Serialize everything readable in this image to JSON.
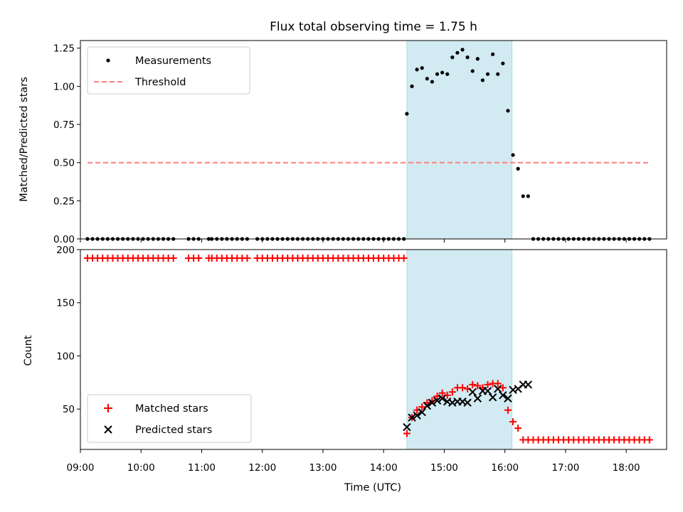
{
  "colors": {
    "measurements": "#000000",
    "threshold": "#ff7f7f",
    "matched": "#ff0000",
    "predicted": "#000000",
    "span": "#add8e6"
  },
  "chart_data": [
    {
      "type": "scatter",
      "title": "Flux total observing time = 1.75 h",
      "xlabel": "",
      "ylabel": "Matched/Predicted stars",
      "xlim": [
        "09:00",
        "18:40"
      ],
      "ylim": [
        0,
        1.3
      ],
      "yticks": [
        "0.00",
        "0.25",
        "0.50",
        "0.75",
        "1.00",
        "1.25"
      ],
      "highlight_span": [
        "14:23",
        "16:07"
      ],
      "legend_position": "top-left",
      "series": [
        {
          "name": "Measurements",
          "marker": "dot",
          "points": [
            [
              "09:07",
              0
            ],
            [
              "09:12",
              0
            ],
            [
              "09:17",
              0
            ],
            [
              "09:22",
              0
            ],
            [
              "09:27",
              0
            ],
            [
              "09:32",
              0
            ],
            [
              "09:37",
              0
            ],
            [
              "09:42",
              0
            ],
            [
              "09:47",
              0
            ],
            [
              "09:52",
              0
            ],
            [
              "09:57",
              0
            ],
            [
              "10:02",
              0
            ],
            [
              "10:07",
              0
            ],
            [
              "10:12",
              0
            ],
            [
              "10:17",
              0
            ],
            [
              "10:22",
              0
            ],
            [
              "10:27",
              0
            ],
            [
              "10:32",
              0
            ],
            [
              "10:47",
              0
            ],
            [
              "10:52",
              0
            ],
            [
              "10:57",
              0
            ],
            [
              "11:07",
              0
            ],
            [
              "11:10",
              0
            ],
            [
              "11:15",
              0
            ],
            [
              "11:20",
              0
            ],
            [
              "11:25",
              0
            ],
            [
              "11:30",
              0
            ],
            [
              "11:35",
              0
            ],
            [
              "11:40",
              0
            ],
            [
              "11:45",
              0
            ],
            [
              "11:55",
              0
            ],
            [
              "12:00",
              0
            ],
            [
              "12:05",
              0
            ],
            [
              "12:10",
              0
            ],
            [
              "12:15",
              0
            ],
            [
              "12:20",
              0
            ],
            [
              "12:25",
              0
            ],
            [
              "12:30",
              0
            ],
            [
              "12:35",
              0
            ],
            [
              "12:40",
              0
            ],
            [
              "12:45",
              0
            ],
            [
              "12:50",
              0
            ],
            [
              "12:55",
              0
            ],
            [
              "13:00",
              0
            ],
            [
              "13:05",
              0
            ],
            [
              "13:10",
              0
            ],
            [
              "13:15",
              0
            ],
            [
              "13:20",
              0
            ],
            [
              "13:25",
              0
            ],
            [
              "13:30",
              0
            ],
            [
              "13:35",
              0
            ],
            [
              "13:40",
              0
            ],
            [
              "13:45",
              0
            ],
            [
              "13:50",
              0
            ],
            [
              "13:55",
              0
            ],
            [
              "14:00",
              0
            ],
            [
              "14:05",
              0
            ],
            [
              "14:10",
              0
            ],
            [
              "14:15",
              0
            ],
            [
              "14:20",
              0
            ],
            [
              "14:23",
              0.82
            ],
            [
              "14:28",
              1.0
            ],
            [
              "14:33",
              1.11
            ],
            [
              "14:38",
              1.12
            ],
            [
              "14:43",
              1.05
            ],
            [
              "14:48",
              1.03
            ],
            [
              "14:53",
              1.08
            ],
            [
              "14:58",
              1.09
            ],
            [
              "15:03",
              1.08
            ],
            [
              "15:08",
              1.19
            ],
            [
              "15:13",
              1.22
            ],
            [
              "15:18",
              1.24
            ],
            [
              "15:23",
              1.19
            ],
            [
              "15:28",
              1.1
            ],
            [
              "15:33",
              1.18
            ],
            [
              "15:38",
              1.04
            ],
            [
              "15:43",
              1.08
            ],
            [
              "15:48",
              1.21
            ],
            [
              "15:53",
              1.08
            ],
            [
              "15:58",
              1.15
            ],
            [
              "16:03",
              0.84
            ],
            [
              "16:08",
              0.55
            ],
            [
              "16:13",
              0.46
            ],
            [
              "16:18",
              0.28
            ],
            [
              "16:23",
              0.28
            ],
            [
              "16:28",
              0
            ],
            [
              "16:33",
              0
            ],
            [
              "16:38",
              0
            ],
            [
              "16:43",
              0
            ],
            [
              "16:48",
              0
            ],
            [
              "16:53",
              0
            ],
            [
              "16:58",
              0
            ],
            [
              "17:03",
              0
            ],
            [
              "17:08",
              0
            ],
            [
              "17:13",
              0
            ],
            [
              "17:18",
              0
            ],
            [
              "17:23",
              0
            ],
            [
              "17:28",
              0
            ],
            [
              "17:33",
              0
            ],
            [
              "17:38",
              0
            ],
            [
              "17:43",
              0
            ],
            [
              "17:48",
              0
            ],
            [
              "17:53",
              0
            ],
            [
              "17:58",
              0
            ],
            [
              "18:03",
              0
            ],
            [
              "18:08",
              0
            ],
            [
              "18:13",
              0
            ],
            [
              "18:18",
              0
            ],
            [
              "18:23",
              0
            ]
          ]
        },
        {
          "name": "Threshold",
          "marker": "dashed-line",
          "points": [
            [
              "09:07",
              0.5
            ],
            [
              "18:23",
              0.5
            ]
          ]
        }
      ]
    },
    {
      "type": "scatter",
      "title": "",
      "xlabel": "Time (UTC)",
      "ylabel": "Count",
      "xlim": [
        "09:00",
        "18:40"
      ],
      "ylim": [
        12,
        200
      ],
      "yticks": [
        "50",
        "100",
        "150",
        "200"
      ],
      "xticks": [
        "09:00",
        "10:00",
        "11:00",
        "12:00",
        "13:00",
        "14:00",
        "15:00",
        "16:00",
        "17:00",
        "18:00"
      ],
      "highlight_span": [
        "14:23",
        "16:07"
      ],
      "legend_position": "bottom-left",
      "series": [
        {
          "name": "Matched stars",
          "marker": "plus",
          "points": [
            [
              "09:07",
              192
            ],
            [
              "09:12",
              192
            ],
            [
              "09:17",
              192
            ],
            [
              "09:22",
              192
            ],
            [
              "09:27",
              192
            ],
            [
              "09:32",
              192
            ],
            [
              "09:37",
              192
            ],
            [
              "09:42",
              192
            ],
            [
              "09:47",
              192
            ],
            [
              "09:52",
              192
            ],
            [
              "09:57",
              192
            ],
            [
              "10:02",
              192
            ],
            [
              "10:07",
              192
            ],
            [
              "10:12",
              192
            ],
            [
              "10:17",
              192
            ],
            [
              "10:22",
              192
            ],
            [
              "10:27",
              192
            ],
            [
              "10:32",
              192
            ],
            [
              "10:47",
              192
            ],
            [
              "10:52",
              192
            ],
            [
              "10:57",
              192
            ],
            [
              "11:07",
              192
            ],
            [
              "11:10",
              192
            ],
            [
              "11:15",
              192
            ],
            [
              "11:20",
              192
            ],
            [
              "11:25",
              192
            ],
            [
              "11:30",
              192
            ],
            [
              "11:35",
              192
            ],
            [
              "11:40",
              192
            ],
            [
              "11:45",
              192
            ],
            [
              "11:55",
              192
            ],
            [
              "12:00",
              192
            ],
            [
              "12:05",
              192
            ],
            [
              "12:10",
              192
            ],
            [
              "12:15",
              192
            ],
            [
              "12:20",
              192
            ],
            [
              "12:25",
              192
            ],
            [
              "12:30",
              192
            ],
            [
              "12:35",
              192
            ],
            [
              "12:40",
              192
            ],
            [
              "12:45",
              192
            ],
            [
              "12:50",
              192
            ],
            [
              "12:55",
              192
            ],
            [
              "13:00",
              192
            ],
            [
              "13:05",
              192
            ],
            [
              "13:10",
              192
            ],
            [
              "13:15",
              192
            ],
            [
              "13:20",
              192
            ],
            [
              "13:25",
              192
            ],
            [
              "13:30",
              192
            ],
            [
              "13:35",
              192
            ],
            [
              "13:40",
              192
            ],
            [
              "13:45",
              192
            ],
            [
              "13:50",
              192
            ],
            [
              "13:55",
              192
            ],
            [
              "14:00",
              192
            ],
            [
              "14:05",
              192
            ],
            [
              "14:10",
              192
            ],
            [
              "14:15",
              192
            ],
            [
              "14:20",
              192
            ],
            [
              "14:23",
              27
            ],
            [
              "14:28",
              42
            ],
            [
              "14:33",
              49
            ],
            [
              "14:38",
              52
            ],
            [
              "14:43",
              56
            ],
            [
              "14:48",
              58
            ],
            [
              "14:53",
              62
            ],
            [
              "14:58",
              65
            ],
            [
              "15:03",
              63
            ],
            [
              "15:08",
              66
            ],
            [
              "15:13",
              70
            ],
            [
              "15:18",
              70
            ],
            [
              "15:23",
              69
            ],
            [
              "15:28",
              73
            ],
            [
              "15:33",
              72
            ],
            [
              "15:38",
              70
            ],
            [
              "15:43",
              73
            ],
            [
              "15:48",
              74
            ],
            [
              "15:53",
              74
            ],
            [
              "15:58",
              70
            ],
            [
              "16:03",
              49
            ],
            [
              "16:08",
              38
            ],
            [
              "16:13",
              32
            ],
            [
              "16:18",
              21
            ],
            [
              "16:23",
              21
            ],
            [
              "16:28",
              21
            ],
            [
              "16:33",
              21
            ],
            [
              "16:38",
              21
            ],
            [
              "16:43",
              21
            ],
            [
              "16:48",
              21
            ],
            [
              "16:53",
              21
            ],
            [
              "16:58",
              21
            ],
            [
              "17:03",
              21
            ],
            [
              "17:08",
              21
            ],
            [
              "17:13",
              21
            ],
            [
              "17:18",
              21
            ],
            [
              "17:23",
              21
            ],
            [
              "17:28",
              21
            ],
            [
              "17:33",
              21
            ],
            [
              "17:38",
              21
            ],
            [
              "17:43",
              21
            ],
            [
              "17:48",
              21
            ],
            [
              "17:53",
              21
            ],
            [
              "17:58",
              21
            ],
            [
              "18:03",
              21
            ],
            [
              "18:08",
              21
            ],
            [
              "18:13",
              21
            ],
            [
              "18:18",
              21
            ],
            [
              "18:23",
              21
            ]
          ]
        },
        {
          "name": "Predicted stars",
          "marker": "x",
          "points": [
            [
              "14:23",
              33
            ],
            [
              "14:28",
              42
            ],
            [
              "14:33",
              44
            ],
            [
              "14:38",
              47
            ],
            [
              "14:43",
              53
            ],
            [
              "14:48",
              56
            ],
            [
              "14:53",
              58
            ],
            [
              "14:58",
              60
            ],
            [
              "15:03",
              57
            ],
            [
              "15:08",
              56
            ],
            [
              "15:13",
              57
            ],
            [
              "15:18",
              57
            ],
            [
              "15:23",
              56
            ],
            [
              "15:28",
              66
            ],
            [
              "15:33",
              60
            ],
            [
              "15:38",
              67
            ],
            [
              "15:43",
              67
            ],
            [
              "15:48",
              61
            ],
            [
              "15:53",
              69
            ],
            [
              "15:58",
              63
            ],
            [
              "16:03",
              60
            ],
            [
              "16:08",
              68
            ],
            [
              "16:13",
              69
            ],
            [
              "16:18",
              73
            ],
            [
              "16:23",
              73
            ]
          ]
        }
      ]
    }
  ]
}
